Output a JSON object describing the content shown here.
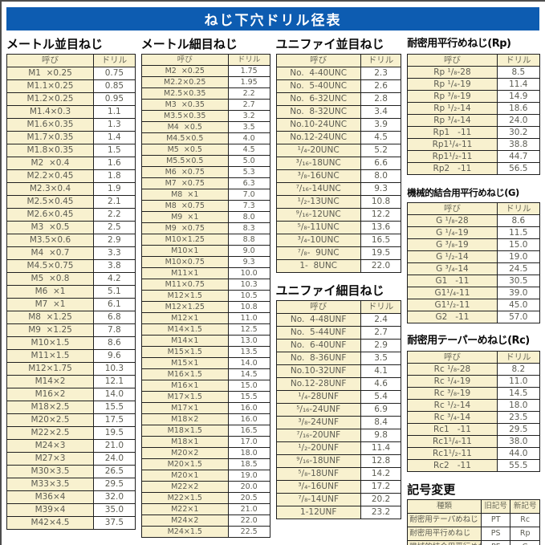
{
  "colors": {
    "banner_blue": "#0d5cb1",
    "cell_cream": "#f8f1cf",
    "border": "#1f1f1f",
    "banner_text": "#ffffff"
  },
  "banner": {
    "title": "ねじ下穴ドリル径表"
  },
  "tables": {
    "metric_coarse": {
      "title": "メートル並目ねじ",
      "headers": [
        "呼び",
        "ドリル"
      ],
      "rows": [
        [
          "M1  ×0.25",
          "0.75"
        ],
        [
          "M1.1×0.25",
          "0.85"
        ],
        [
          "M1.2×0.25",
          "0.95"
        ],
        [
          "M1.4×0.3",
          "1.1"
        ],
        [
          "M1.6×0.35",
          "1.3"
        ],
        [
          "M1.7×0.35",
          "1.4"
        ],
        [
          "M1.8×0.35",
          "1.5"
        ],
        [
          "M2  ×0.4",
          "1.6"
        ],
        [
          "M2.2×0.45",
          "1.8"
        ],
        [
          "M2.3×0.4",
          "1.9"
        ],
        [
          "M2.5×0.45",
          "2.1"
        ],
        [
          "M2.6×0.45",
          "2.2"
        ],
        [
          "M3  ×0.5",
          "2.5"
        ],
        [
          "M3.5×0.6",
          "2.9"
        ],
        [
          "M4  ×0.7",
          "3.3"
        ],
        [
          "M4.5×0.75",
          "3.8"
        ],
        [
          "M5  ×0.8",
          "4.2"
        ],
        [
          "M6  ×1",
          "5.1"
        ],
        [
          "M7  ×1",
          "6.1"
        ],
        [
          "M8  ×1.25",
          "6.8"
        ],
        [
          "M9  ×1.25",
          "7.8"
        ],
        [
          "M10×1.5",
          "8.6"
        ],
        [
          "M11×1.5",
          "9.6"
        ],
        [
          "M12×1.75",
          "10.3"
        ],
        [
          "M14×2",
          "12.1"
        ],
        [
          "M16×2",
          "14.0"
        ],
        [
          "M18×2.5",
          "15.5"
        ],
        [
          "M20×2.5",
          "17.5"
        ],
        [
          "M22×2.5",
          "19.5"
        ],
        [
          "M24×3",
          "21.0"
        ],
        [
          "M27×3",
          "24.0"
        ],
        [
          "M30×3.5",
          "26.5"
        ],
        [
          "M33×3.5",
          "29.5"
        ],
        [
          "M36×4",
          "32.0"
        ],
        [
          "M39×4",
          "35.0"
        ],
        [
          "M42×4.5",
          "37.5"
        ]
      ]
    },
    "metric_fine": {
      "title": "メートル細目ねじ",
      "headers": [
        "呼び",
        "ドリル"
      ],
      "rows": [
        [
          "M2  ×0.25",
          "1.75"
        ],
        [
          "M2.2×0.25",
          "1.95"
        ],
        [
          "M2.5×0.35",
          "2.2"
        ],
        [
          "M3  ×0.35",
          "2.7"
        ],
        [
          "M3.5×0.35",
          "3.2"
        ],
        [
          "M4  ×0.5",
          "3.5"
        ],
        [
          "M4.5×0.5",
          "4.0"
        ],
        [
          "M5  ×0.5",
          "4.5"
        ],
        [
          "M5.5×0.5",
          "5.0"
        ],
        [
          "M6  ×0.75",
          "5.3"
        ],
        [
          "M7  ×0.75",
          "6.3"
        ],
        [
          "M8  ×1",
          "7.0"
        ],
        [
          "M8  ×0.75",
          "7.3"
        ],
        [
          "M9  ×1",
          "8.0"
        ],
        [
          "M9  ×0.75",
          "8.3"
        ],
        [
          "M10×1.25",
          "8.8"
        ],
        [
          "M10×1",
          "9.0"
        ],
        [
          "M10×0.75",
          "9.3"
        ],
        [
          "M11×1",
          "10.0"
        ],
        [
          "M11×0.75",
          "10.3"
        ],
        [
          "M12×1.5",
          "10.5"
        ],
        [
          "M12×1.25",
          "10.8"
        ],
        [
          "M12×1",
          "11.0"
        ],
        [
          "M14×1.5",
          "12.5"
        ],
        [
          "M14×1",
          "13.0"
        ],
        [
          "M15×1.5",
          "13.5"
        ],
        [
          "M15×1",
          "14.0"
        ],
        [
          "M16×1.5",
          "14.5"
        ],
        [
          "M16×1",
          "15.0"
        ],
        [
          "M17×1.5",
          "15.5"
        ],
        [
          "M17×1",
          "16.0"
        ],
        [
          "M18×2",
          "16.0"
        ],
        [
          "M18×1.5",
          "16.5"
        ],
        [
          "M18×1",
          "17.0"
        ],
        [
          "M20×2",
          "18.0"
        ],
        [
          "M20×1.5",
          "18.5"
        ],
        [
          "M20×1",
          "19.0"
        ],
        [
          "M22×2",
          "20.0"
        ],
        [
          "M22×1.5",
          "20.5"
        ],
        [
          "M22×1",
          "21.0"
        ],
        [
          "M24×2",
          "22.0"
        ],
        [
          "M24×1.5",
          "22.5"
        ]
      ]
    },
    "unified_coarse": {
      "title": "ユニファイ並目ねじ",
      "headers": [
        "呼び",
        "ドリル"
      ],
      "rows": [
        [
          "No.  4-40UNC",
          "2.3"
        ],
        [
          "No.  5-40UNC",
          "2.6"
        ],
        [
          "No.  6-32UNC",
          "2.8"
        ],
        [
          "No.  8-32UNC",
          "3.4"
        ],
        [
          "No.10-24UNC",
          "3.9"
        ],
        [
          "No.12-24UNC",
          "4.5"
        ],
        [
          "¹/₄-20UNC",
          "5.2"
        ],
        [
          "³/₁₆-18UNC",
          "6.6"
        ],
        [
          "³/₈-16UNC",
          "8.0"
        ],
        [
          "⁷/₁₆-14UNC",
          "9.3"
        ],
        [
          "¹/₂-13UNC",
          "10.8"
        ],
        [
          "⁹/₁₆-12UNC",
          "12.2"
        ],
        [
          "⁵/₈-11UNC",
          "13.6"
        ],
        [
          "³/₄-10UNC",
          "16.5"
        ],
        [
          "⁷/₈-  9UNC",
          "19.5"
        ],
        [
          "1-  8UNC",
          "22.0"
        ]
      ]
    },
    "unified_fine": {
      "title": "ユニファイ細目ねじ",
      "headers": [
        "呼び",
        "ドリル"
      ],
      "rows": [
        [
          "No.  4-48UNF",
          "2.4"
        ],
        [
          "No.  5-44UNF",
          "2.7"
        ],
        [
          "No.  6-40UNF",
          "2.9"
        ],
        [
          "No.  8-36UNF",
          "3.5"
        ],
        [
          "No.10-32UNF",
          "4.1"
        ],
        [
          "No.12-28UNF",
          "4.6"
        ],
        [
          "¹/₄-28UNF",
          "5.4"
        ],
        [
          "⁵/₁₆-24UNF",
          "6.9"
        ],
        [
          "³/₈-24UNF",
          "8.4"
        ],
        [
          "⁷/₁₆-20UNF",
          "9.8"
        ],
        [
          "¹/₂-20UNF",
          "11.4"
        ],
        [
          "⁹/₁₆-18UNF",
          "12.8"
        ],
        [
          "⁵/₈-18UNF",
          "14.2"
        ],
        [
          "³/₄-16UNF",
          "17.2"
        ],
        [
          "⁷/₈-14UNF",
          "20.2"
        ],
        [
          "1-12UNF",
          "23.2"
        ]
      ]
    },
    "rp": {
      "title": "耐密用平行めねじ(Rp)",
      "headers": [
        "呼び",
        "ドリル"
      ],
      "rows": [
        [
          "Rp ¹/₈-28",
          "8.5"
        ],
        [
          "Rp ¹/₄-19",
          "11.4"
        ],
        [
          "Rp ³/₈-19",
          "14.9"
        ],
        [
          "Rp ¹/₂-14",
          "18.6"
        ],
        [
          "Rp ³/₄-14",
          "24.0"
        ],
        [
          "Rp1   -11",
          "30.2"
        ],
        [
          "Rp1¹/₄-11",
          "38.8"
        ],
        [
          "Rp1¹/₂-11",
          "44.7"
        ],
        [
          "Rp2   -11",
          "56.5"
        ]
      ]
    },
    "g": {
      "title": "機械的結合用平行めねじ(G)",
      "headers": [
        "呼び",
        "ドリル"
      ],
      "rows": [
        [
          "G ¹/₈-28",
          "8.6"
        ],
        [
          "G ¹/₄-19",
          "11.5"
        ],
        [
          "G ³/₈-19",
          "15.0"
        ],
        [
          "G ¹/₂-14",
          "19.0"
        ],
        [
          "G ³/₄-14",
          "24.5"
        ],
        [
          "G1   -11",
          "30.5"
        ],
        [
          "G1¹/₄-11",
          "39.0"
        ],
        [
          "G1¹/₂-11",
          "45.0"
        ],
        [
          "G2   -11",
          "57.0"
        ]
      ]
    },
    "rc": {
      "title": "耐密用テーパーめねじ(Rc)",
      "headers": [
        "呼び",
        "ドリル"
      ],
      "rows": [
        [
          "Rc ¹/₈-28",
          "8.2"
        ],
        [
          "Rc ¹/₄-19",
          "11.0"
        ],
        [
          "Rc ³/₈-19",
          "14.5"
        ],
        [
          "Rc ¹/₂-14",
          "18.0"
        ],
        [
          "Rc ³/₄-14",
          "23.5"
        ],
        [
          "Rc1   -11",
          "29.5"
        ],
        [
          "Rc1¹/₄-11",
          "38.0"
        ],
        [
          "Rc1¹/₂-11",
          "44.0"
        ],
        [
          "Rc2   -11",
          "55.5"
        ]
      ]
    },
    "symbol_change": {
      "title": "記号変更",
      "headers": [
        "種類",
        "旧記号",
        "新記号"
      ],
      "rows": [
        [
          "耐密用テーパめねじ",
          "PT",
          "Rc"
        ],
        [
          "耐密用平行めねじ",
          "PS",
          "Rp"
        ],
        [
          "機械的結合用平行めねじ",
          "PF",
          "G"
        ]
      ]
    }
  }
}
